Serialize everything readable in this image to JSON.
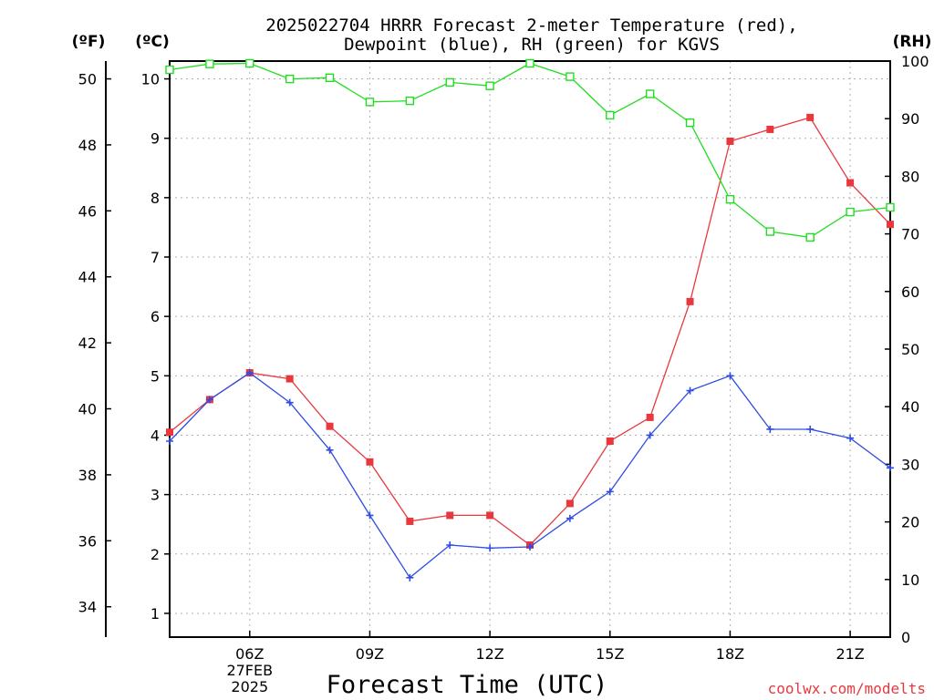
{
  "chart_data": {
    "type": "line",
    "title_lines": [
      "2025022704 HRRR Forecast 2-meter Temperature (red),",
      "Dewpoint (blue), RH (green) for KGVS"
    ],
    "xlabel": "Forecast Time (UTC)",
    "credit": "coolwx.com/modelts",
    "units": {
      "fahrenheit": "(ºF)",
      "celsius": "(ºC)",
      "rh": "(RH)"
    },
    "x": [
      4,
      5,
      6,
      7,
      8,
      9,
      10,
      11,
      12,
      13,
      14,
      15,
      16,
      17,
      18,
      19,
      20,
      21,
      22
    ],
    "xlim": [
      4,
      22
    ],
    "x_ticks": [
      {
        "hour": 6,
        "lines": [
          "06Z",
          "27FEB",
          "2025"
        ]
      },
      {
        "hour": 9,
        "lines": [
          "09Z"
        ]
      },
      {
        "hour": 12,
        "lines": [
          "12Z"
        ]
      },
      {
        "hour": 15,
        "lines": [
          "15Z"
        ]
      },
      {
        "hour": 18,
        "lines": [
          "18Z"
        ]
      },
      {
        "hour": 21,
        "lines": [
          "21Z"
        ]
      }
    ],
    "celsius_axis": {
      "range": [
        0.6,
        10.3
      ],
      "ticks": [
        1,
        2,
        3,
        4,
        5,
        6,
        7,
        8,
        9,
        10
      ]
    },
    "fahrenheit_ticks": [
      34,
      36,
      38,
      40,
      42,
      44,
      46,
      48,
      50
    ],
    "rh_axis": {
      "range": [
        0,
        100
      ],
      "ticks": [
        0,
        10,
        20,
        30,
        40,
        50,
        60,
        70,
        80,
        90,
        100
      ]
    },
    "grid": true,
    "series": [
      {
        "name": "Temperature",
        "axis": "celsius",
        "color": "#e8383d",
        "marker": "filled-square",
        "values": [
          4.05,
          4.6,
          5.05,
          4.95,
          4.15,
          3.55,
          2.55,
          2.65,
          2.65,
          2.15,
          2.85,
          3.9,
          4.3,
          6.25,
          8.95,
          9.15,
          9.35,
          8.25,
          7.55
        ]
      },
      {
        "name": "Dewpoint",
        "axis": "celsius",
        "color": "#2f4de0",
        "marker": "plus",
        "values": [
          3.9,
          4.6,
          5.05,
          4.55,
          3.75,
          2.65,
          1.6,
          2.15,
          2.1,
          2.12,
          2.6,
          3.05,
          4.0,
          4.75,
          5.0,
          4.1,
          4.1,
          3.95,
          3.45
        ]
      },
      {
        "name": "RH",
        "axis": "rh",
        "color": "#22dd22",
        "marker": "open-square",
        "values": [
          98.5,
          99.5,
          99.6,
          96.9,
          97.1,
          92.9,
          93.1,
          96.3,
          95.7,
          99.6,
          97.3,
          90.6,
          94.3,
          89.3,
          76.0,
          70.4,
          69.4,
          73.8,
          74.6
        ]
      }
    ]
  }
}
